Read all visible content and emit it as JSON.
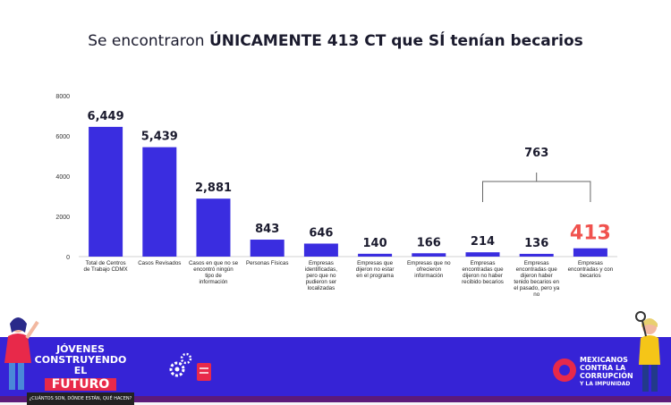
{
  "title": {
    "prefix": "Se encontraron ",
    "bold": "ÚNICAMENTE 413 CT que SÍ tenían becarios"
  },
  "colors": {
    "bar": "#3a2de0",
    "highlight": "#f0524e",
    "footer": "#3623d6",
    "accent": "#e8294a"
  },
  "chart_data": {
    "type": "bar",
    "title": "Se encontraron ÚNICAMENTE 413 CT que SÍ tenían becarios",
    "ylim": [
      0,
      8000
    ],
    "yticks": [
      0,
      2000,
      4000,
      6000,
      8000
    ],
    "categories": [
      "Total de Centros de Trabajo CDMX",
      "Casos Revisados",
      "Casos en que no se encontró ningún tipo de información",
      "Personas Físicas",
      "Empresas identificadas, pero que no pudieron ser localizadas",
      "Empresas que dijeron no estar en el programa",
      "Empresas que no ofrecieron información",
      "Empresas encontradas que dijeron no haber recibido becarios",
      "Empresas encontradas que dijeron haber tenido becarios en el pasado, pero ya no",
      "Empresas encontradas y con becarios"
    ],
    "values": [
      6449,
      5439,
      2881,
      843,
      646,
      140,
      166,
      214,
      136,
      413
    ],
    "labels": [
      "6,449",
      "5,439",
      "2,881",
      "843",
      "646",
      "140",
      "166",
      "214",
      "136",
      "413"
    ],
    "highlight_index": 9,
    "annotation": {
      "text": "763",
      "spans": [
        7,
        9
      ]
    }
  },
  "footer": {
    "left_line1": "JÓVENES",
    "left_line2": "CONSTRUYENDO EL",
    "left_line3": "FUTURO",
    "left_sub": "¿CUÁNTOS SON, DÓNDE ESTÁN, QUÉ HACEN?",
    "right_line1": "MEXICANOS",
    "right_line2": "CONTRA LA",
    "right_line3": "CORRUPCIÓN",
    "right_line4": "Y LA IMPUNIDAD"
  }
}
